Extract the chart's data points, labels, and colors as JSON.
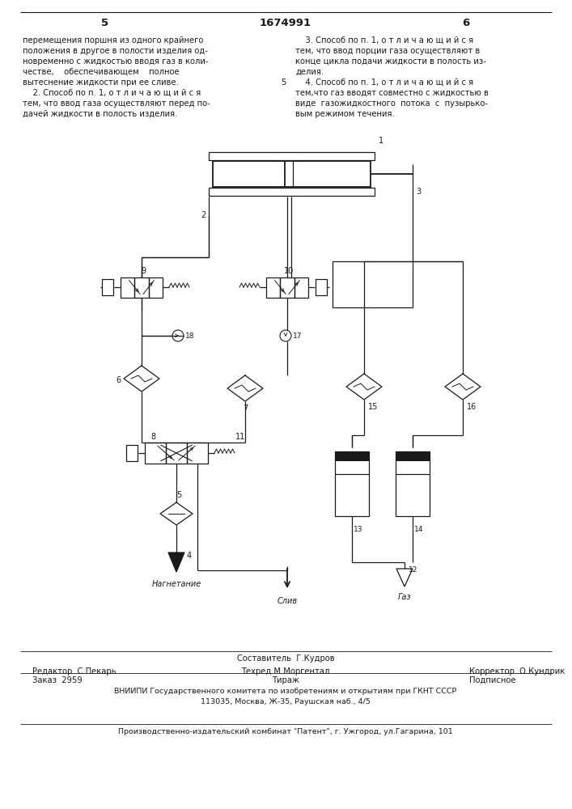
{
  "bg_color": "#ffffff",
  "page_num_left": "5",
  "page_num_center": "1674991",
  "page_num_right": "6",
  "text_left": [
    "перемещения поршня из одного крайнего",
    "положения в другое в полости изделия од-",
    "новременно с жидкостью вводя газ в коли-",
    "честве,    обеспечивающем    полное",
    "вытеснение жидкости при ее сливе.",
    "    2. Способ по п. 1, о т л и ч а ю щ и й с я",
    "тем, что ввод газа осуществляют перед по-",
    "дачей жидкости в полость изделия."
  ],
  "text_right": [
    "    3. Способ по п. 1, о т л и ч а ю щ и й с я",
    "тем, что ввод порции газа осуществляют в",
    "конце цикла подачи жидкости в полость из-",
    "делия.",
    "    4. Способ по п. 1, о т л и ч а ю щ и й с я",
    "тем,что газ вводят совместно с жидкостью в",
    "виде  газожидкостного  потока  с  пузырько-",
    "вым режимом течения."
  ],
  "footer_sostavitel": "Составитель  Г.Кудров",
  "footer_editor": "Редактор  С.Пекарь",
  "footer_techred": "Техред М.Моргентал",
  "footer_corrector": "Корректор  О.Кундрик",
  "footer_order": "Заказ  2959",
  "footer_tirazh": "Тираж",
  "footer_podpisnoe": "Подписное",
  "footer_vniiipi": "ВНИИПИ Государственного комитета по изобретениям и открытиям при ГКНТ СССР",
  "footer_address": "113035, Москва, Ж-35, Раушская наб., 4/5",
  "footer_proizv": "Производственно-издательский комбинат \"Патент\", г. Ужгород, ул.Гагарина, 101",
  "label_nagnet": "Нагнетание",
  "label_sliv": "Слив",
  "label_gaz": "Газ"
}
